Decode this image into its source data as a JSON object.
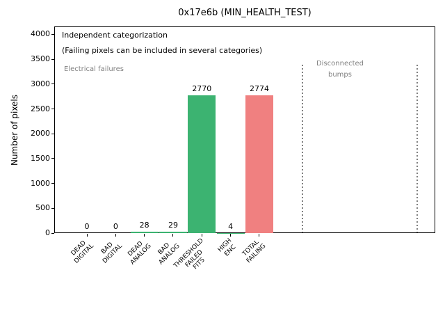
{
  "chart_data": {
    "type": "bar",
    "title": "0x17e6b (MIN_HEALTH_TEST)",
    "ylabel": "Number of pixels",
    "xlabel": "",
    "categories": [
      "DEAD\nDIGITAL",
      "BAD\nDIGITAL",
      "DEAD\nANALOG",
      "BAD\nANALOG",
      "THRESHOLD\nFAILED\nFITS",
      "HIGH\nENC",
      "TOTAL\nFAILING"
    ],
    "values": [
      0,
      0,
      28,
      29,
      2770,
      4,
      2774
    ],
    "bar_labels": [
      "0",
      "0",
      "28",
      "29",
      "2770",
      "4",
      "2774"
    ],
    "bar_colors": [
      "#3cb371",
      "#3cb371",
      "#3cb371",
      "#3cb371",
      "#3cb371",
      "#3cb371",
      "#f08080"
    ],
    "yticks": [
      0,
      500,
      1000,
      1500,
      2000,
      2500,
      3000,
      3500,
      4000
    ],
    "ylim": [
      0,
      4160
    ],
    "grid": false,
    "legend": null,
    "annotations": {
      "heading": "Independent categorization",
      "subheading": "(Failing pixels can be included in several categories)",
      "region_left_label": "Electrical failures",
      "region_right_label": "Disconnected\nbumps"
    },
    "dividers": {
      "count": 2,
      "style": "dotted",
      "color": "#808080"
    },
    "colors": {
      "pass_green": "#3cb371",
      "fail_red": "#f08080",
      "muted_gray": "#808080"
    }
  }
}
